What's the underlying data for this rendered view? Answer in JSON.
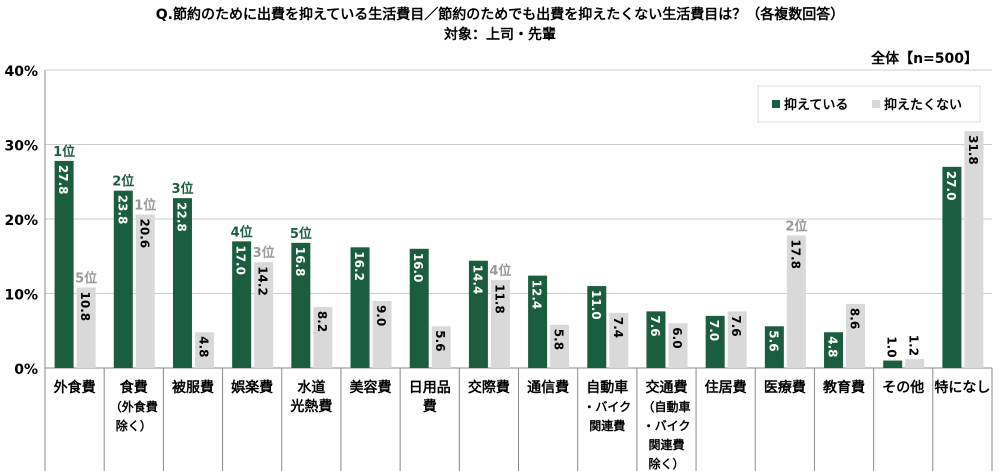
{
  "chart_data": {
    "type": "bar",
    "title": "Q.節約のために出費を抑えている生活費目／節約のためでも出費を抑えたくない生活費目は？（各複数回答）",
    "subtitle": "対象：上司・先輩",
    "sample": "全体【n=500】",
    "ylim": [
      0,
      40
    ],
    "yticks": [
      "0%",
      "10%",
      "20%",
      "30%",
      "40%"
    ],
    "categories": [
      [
        "外食費"
      ],
      [
        "食費",
        "（外食費",
        "除く）"
      ],
      [
        "被服費"
      ],
      [
        "娯楽費"
      ],
      [
        "水道",
        "光熱費"
      ],
      [
        "美容費"
      ],
      [
        "日用品",
        "費"
      ],
      [
        "交際費"
      ],
      [
        "通信費"
      ],
      [
        "自動車",
        "・バイク",
        "関連費"
      ],
      [
        "交通費",
        "（自動車",
        "・バイク",
        "関連費",
        "除く）"
      ],
      [
        "住居費"
      ],
      [
        "医療費"
      ],
      [
        "教育費"
      ],
      [
        "その他"
      ],
      [
        "特になし"
      ]
    ],
    "series": [
      {
        "name": "抑えている",
        "color": "#1b5e3f",
        "values": [
          27.8,
          23.8,
          22.8,
          17.0,
          16.8,
          16.2,
          16.0,
          14.4,
          12.4,
          11.0,
          7.6,
          7.0,
          5.6,
          4.8,
          1.0,
          27.0
        ],
        "labels": [
          "27.8",
          "23.8",
          "22.8",
          "17.0",
          "16.8",
          "16.2",
          "16.0",
          "14.4",
          "12.4",
          "11.0",
          "7.6",
          "7.0",
          "5.6",
          "4.8",
          "1.0",
          "27.0"
        ],
        "ranks": [
          "1位",
          "2位",
          "3位",
          "4位",
          "5位",
          "",
          "",
          "",
          "",
          "",
          "",
          "",
          "",
          "",
          "",
          ""
        ]
      },
      {
        "name": "抑えたくない",
        "color": "#d9d9d9",
        "values": [
          10.8,
          20.6,
          4.8,
          14.2,
          8.2,
          9.0,
          5.6,
          11.8,
          5.8,
          7.4,
          6.0,
          7.6,
          17.8,
          8.6,
          1.2,
          31.8
        ],
        "labels": [
          "10.8",
          "20.6",
          "4.8",
          "14.2",
          "8.2",
          "9.0",
          "5.6",
          "11.8",
          "5.8",
          "7.4",
          "6.0",
          "7.6",
          "17.8",
          "8.6",
          "1.2",
          "31.8"
        ],
        "ranks": [
          "5位",
          "1位",
          "",
          "3位",
          "",
          "",
          "",
          "4位",
          "",
          "",
          "",
          "",
          "2位",
          "",
          "",
          ""
        ]
      }
    ],
    "legend": "top-right"
  }
}
